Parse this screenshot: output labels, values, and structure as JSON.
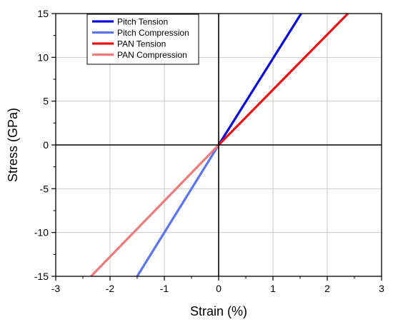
{
  "chart_data": {
    "type": "line",
    "xlabel": "Strain (%)",
    "ylabel": "Stress (GPa)",
    "xlim": [
      -3,
      3
    ],
    "ylim": [
      -15,
      15
    ],
    "xticks": [
      -3,
      -2,
      -1,
      0,
      1,
      2,
      3
    ],
    "yticks": [
      -15,
      -10,
      -5,
      0,
      5,
      10,
      15
    ],
    "grid": true,
    "legend_position": "top-left",
    "series": [
      {
        "name": "Pitch Tension",
        "color": "#0a0adc",
        "x": [
          0,
          1.52
        ],
        "y": [
          0,
          15
        ]
      },
      {
        "name": "Pitch Compression",
        "color": "#5b74f0",
        "x": [
          0,
          -1.5
        ],
        "y": [
          0,
          -15
        ]
      },
      {
        "name": "PAN Tension",
        "color": "#ee1111",
        "x": [
          0,
          2.38
        ],
        "y": [
          0,
          15
        ]
      },
      {
        "name": "PAN Compression",
        "color": "#f07a7a",
        "x": [
          0,
          -2.35
        ],
        "y": [
          0,
          -15
        ]
      }
    ]
  }
}
